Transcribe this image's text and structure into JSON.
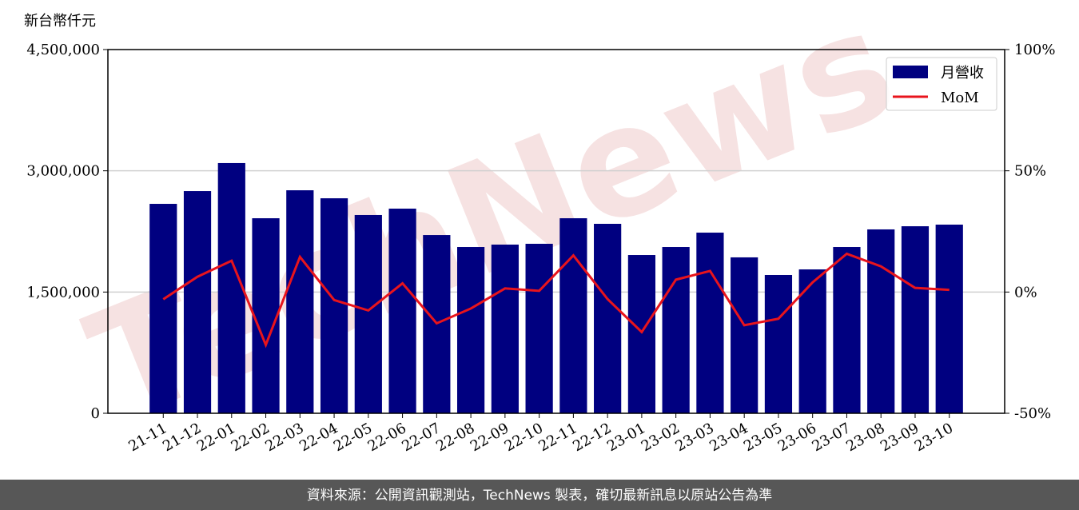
{
  "chart_data": {
    "type": "bar",
    "ylabel": "新台幣仟元",
    "watermark": "TechNews",
    "categories": [
      "21-11",
      "21-12",
      "22-01",
      "22-02",
      "22-03",
      "22-04",
      "22-05",
      "22-06",
      "22-07",
      "22-08",
      "22-09",
      "22-10",
      "22-11",
      "22-12",
      "23-01",
      "23-02",
      "23-03",
      "23-04",
      "23-05",
      "23-06",
      "23-07",
      "23-08",
      "23-09",
      "23-10"
    ],
    "series": [
      {
        "name": "月營收",
        "type": "bar",
        "color": "#000080",
        "values": [
          2591000,
          2749000,
          3096000,
          2413000,
          2759000,
          2660000,
          2453000,
          2532000,
          2205000,
          2057000,
          2087000,
          2097000,
          2413000,
          2344000,
          1958000,
          2057000,
          2235000,
          1929000,
          1711000,
          1780000,
          2057000,
          2275000,
          2314000,
          2334000
        ]
      },
      {
        "name": "MoM",
        "type": "line",
        "axis": "y2",
        "color": "#e8141c",
        "values": [
          -3,
          6.3,
          12.9,
          -21.8,
          14.5,
          -3.3,
          -7.6,
          3.6,
          -12.9,
          -6.8,
          1.5,
          0.5,
          15.1,
          -2.9,
          -16.5,
          5.1,
          8.7,
          -13.7,
          -11,
          4,
          15.8,
          10.6,
          1.7,
          0.9
        ]
      }
    ],
    "ylim": [
      0,
      4500000
    ],
    "yticks": [
      0,
      {
        "value": 1500000,
        "label": "1,500,000"
      },
      {
        "value": 3000000,
        "label": "3,000,000"
      },
      {
        "value": 4500000,
        "label": "4,500,000"
      }
    ],
    "y2lim": [
      -50,
      100
    ],
    "y2ticks": [
      {
        "value": -50,
        "label": "-50%"
      },
      {
        "value": 0,
        "label": "0%"
      },
      {
        "value": 50,
        "label": "50%"
      },
      {
        "value": 100,
        "label": "100%"
      }
    ],
    "grid": true,
    "legend": "upper right"
  },
  "footer": "資料來源：公開資訊觀測站，TechNews 製表，確切最新訊息以原站公告為準"
}
